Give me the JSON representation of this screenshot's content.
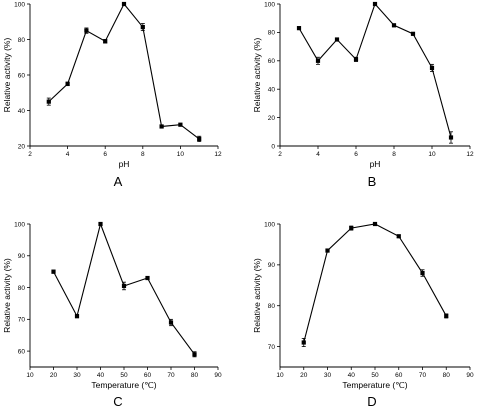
{
  "figure": {
    "panels": [
      "A",
      "B",
      "C",
      "D"
    ]
  },
  "chart_data": [
    {
      "type": "line",
      "panel_label": "A",
      "title": "",
      "xlabel": "pH",
      "ylabel": "Relative activity (%)",
      "xlim": [
        2,
        12
      ],
      "ylim": [
        20,
        100
      ],
      "xticks": [
        2,
        4,
        6,
        8,
        10,
        12
      ],
      "yticks": [
        20,
        40,
        60,
        80,
        100
      ],
      "grid": false,
      "series": [
        {
          "x": [
            3,
            4,
            5,
            6,
            7,
            8,
            9,
            10,
            11
          ],
          "y": [
            45,
            55,
            85,
            79,
            100,
            87,
            31,
            32,
            24
          ],
          "err": [
            2,
            1,
            1.5,
            1,
            0.5,
            2,
            0.5,
            0.5,
            1.5
          ]
        }
      ]
    },
    {
      "type": "line",
      "panel_label": "B",
      "title": "",
      "xlabel": "pH",
      "ylabel": "Relative activity (%)",
      "xlim": [
        2,
        12
      ],
      "ylim": [
        0,
        100
      ],
      "xticks": [
        2,
        4,
        6,
        8,
        10,
        12
      ],
      "yticks": [
        0,
        20,
        40,
        60,
        80,
        100
      ],
      "grid": false,
      "series": [
        {
          "x": [
            3,
            4,
            5,
            6,
            7,
            8,
            9,
            10,
            11
          ],
          "y": [
            83,
            60,
            75,
            61,
            100,
            85,
            79,
            55,
            6
          ],
          "err": [
            1,
            2.5,
            1,
            1.5,
            0.5,
            1,
            0.5,
            2.5,
            4
          ]
        }
      ]
    },
    {
      "type": "line",
      "panel_label": "C",
      "title": "",
      "xlabel": "Temperature (℃)",
      "ylabel": "Relative activity (%)",
      "xlim": [
        10,
        90
      ],
      "ylim": [
        55,
        100
      ],
      "xticks": [
        10,
        20,
        30,
        40,
        50,
        60,
        70,
        80,
        90
      ],
      "yticks": [
        60,
        70,
        80,
        90,
        100
      ],
      "grid": false,
      "series": [
        {
          "x": [
            20,
            30,
            40,
            50,
            60,
            70,
            80
          ],
          "y": [
            85,
            71,
            100,
            80.5,
            83,
            69,
            59
          ],
          "err": [
            0.5,
            0.5,
            0.3,
            1.2,
            0.5,
            1,
            0.8
          ]
        }
      ]
    },
    {
      "type": "line",
      "panel_label": "D",
      "title": "",
      "xlabel": "Temperature (℃)",
      "ylabel": "Relative activity (%)",
      "xlim": [
        10,
        90
      ],
      "ylim": [
        65,
        100
      ],
      "xticks": [
        10,
        20,
        30,
        40,
        50,
        60,
        70,
        80,
        90
      ],
      "yticks": [
        70,
        80,
        90,
        100
      ],
      "grid": false,
      "series": [
        {
          "x": [
            20,
            30,
            40,
            50,
            60,
            70,
            80
          ],
          "y": [
            71,
            93.5,
            99,
            100,
            97,
            88,
            77.5
          ],
          "err": [
            1,
            0.3,
            0.5,
            0.2,
            0.3,
            0.8,
            0.5
          ]
        }
      ]
    }
  ]
}
